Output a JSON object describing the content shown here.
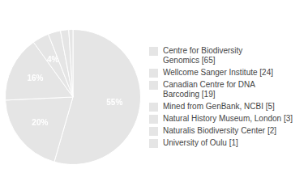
{
  "chart_data": {
    "type": "pie",
    "categories": [
      "Centre for Biodiversity\nGenomics [65]",
      "Wellcome Sanger Institute [24]",
      "Canadian Centre for DNA\nBarcoding [19]",
      "Mined from GenBank, NCBI [5]",
      "Natural History Museum, London [3]",
      "Naturalis Biodiversity Center [2]",
      "University of Oulu [1]"
    ],
    "values": [
      55,
      20,
      16,
      4,
      3,
      2,
      1
    ],
    "value_labels": [
      "55%",
      "20%",
      "16%",
      "4%",
      null,
      null,
      null
    ],
    "data_labels": true,
    "legend": "right"
  }
}
